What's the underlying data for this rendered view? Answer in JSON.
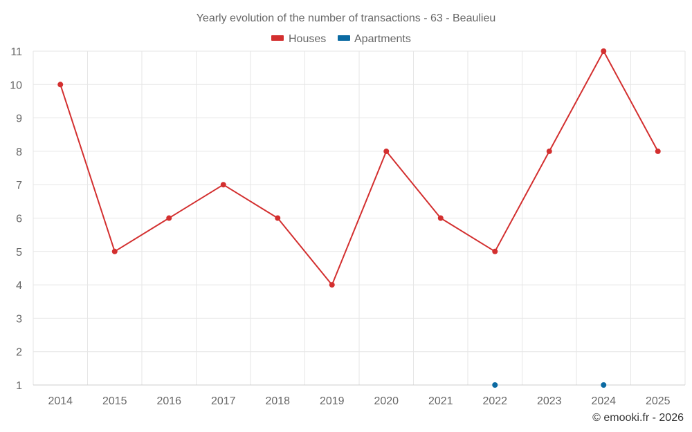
{
  "chart_data": {
    "type": "line",
    "title": "Yearly evolution of the number of transactions - 63 - Beaulieu",
    "xlabel": "",
    "ylabel": "",
    "categories": [
      "2014",
      "2015",
      "2016",
      "2017",
      "2018",
      "2019",
      "2020",
      "2021",
      "2022",
      "2023",
      "2024",
      "2025"
    ],
    "ylim": [
      1,
      11
    ],
    "yticks": [
      1,
      2,
      3,
      4,
      5,
      6,
      7,
      8,
      9,
      10,
      11
    ],
    "grid": true,
    "legend_position": "top-center",
    "series": [
      {
        "name": "Houses",
        "color": "#d32f2f",
        "values": [
          10,
          5,
          6,
          7,
          6,
          4,
          8,
          6,
          5,
          8,
          11,
          8
        ]
      },
      {
        "name": "Apartments",
        "color": "#0b6aa2",
        "values": [
          null,
          null,
          null,
          null,
          null,
          null,
          null,
          null,
          1,
          null,
          1,
          null
        ]
      }
    ]
  },
  "credit": "© emooki.fr - 2026"
}
